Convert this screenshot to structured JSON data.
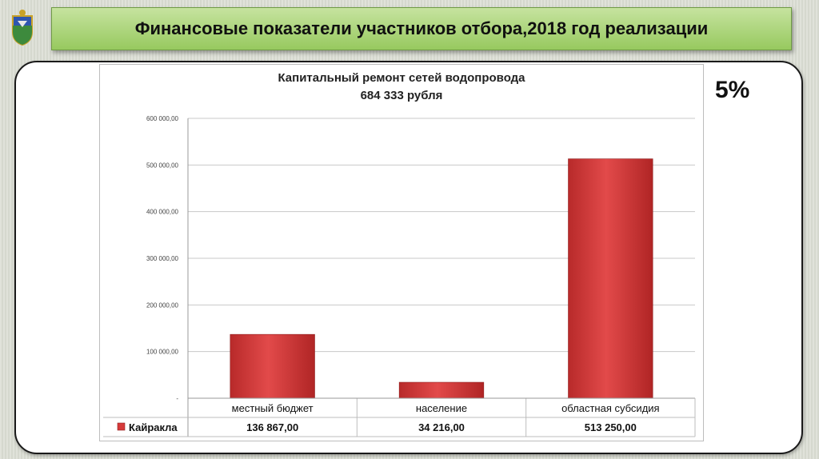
{
  "header": {
    "title": "Финансовые показатели участников отбора,2018 год реализации"
  },
  "badge": {
    "percent": "5%"
  },
  "colors": {
    "header_green": "#a9d57a",
    "bar_red": "#d63a3a"
  },
  "icons": {
    "emblem": "coat-of-arms-icon"
  },
  "chart_data": {
    "type": "bar",
    "title": "Капитальный ремонт сетей водопровода",
    "subtitle": "684 333 рубля",
    "categories": [
      "местный бюджет",
      "население",
      "областная субсидия"
    ],
    "series": [
      {
        "name": "Кайракла",
        "values": [
          136867,
          34216,
          513250
        ],
        "labels": [
          "136 867,00",
          "34 216,00",
          "513 250,00"
        ]
      }
    ],
    "ylim": [
      0,
      600000
    ],
    "yticks": [
      "-",
      "100 000,00",
      "200 000,00",
      "300 000,00",
      "400 000,00",
      "500 000,00",
      "600 000,00"
    ],
    "grid": true,
    "legend": "data-table"
  }
}
